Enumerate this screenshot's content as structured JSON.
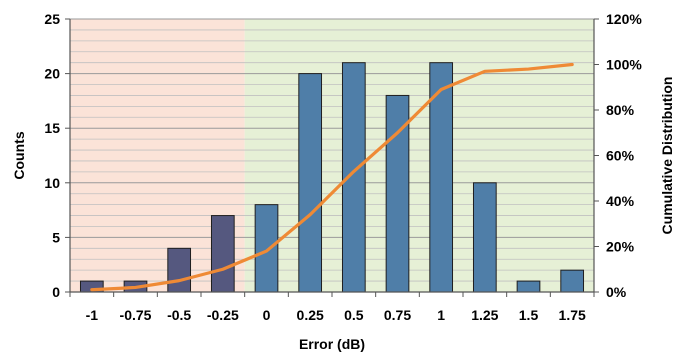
{
  "chart_data": {
    "type": "bar",
    "xlabel": "Error (dB)",
    "ylabel": "Counts",
    "y2label": "Cumulative Distribution",
    "categories": [
      "-1",
      "-0.75",
      "-0.5",
      "-0.25",
      "0",
      "0.25",
      "0.5",
      "0.75",
      "1",
      "1.25",
      "1.5",
      "1.75"
    ],
    "series": [
      {
        "kind": "bar",
        "axis": "left",
        "values": [
          1,
          1,
          4,
          7,
          8,
          20,
          21,
          18,
          21,
          10,
          1,
          2
        ],
        "color": "#4f7ea8",
        "colors": [
          "#55587f",
          "#55587f",
          "#55587f",
          "#55587f",
          "#4f7ea8",
          "#4f7ea8",
          "#4f7ea8",
          "#4f7ea8",
          "#4f7ea8",
          "#4f7ea8",
          "#4f7ea8",
          "#4f7ea8"
        ]
      },
      {
        "kind": "line",
        "axis": "right",
        "values": [
          0.01,
          0.02,
          0.05,
          0.1,
          0.18,
          0.34,
          0.53,
          0.7,
          0.89,
          0.97,
          0.98,
          1.0
        ],
        "color": "#ef8a35"
      }
    ],
    "ylim": [
      0,
      25
    ],
    "yticks": [
      "0",
      "5",
      "10",
      "15",
      "20",
      "25"
    ],
    "y2lim": [
      0,
      1.2
    ],
    "y2ticks": [
      "0%",
      "20%",
      "40%",
      "60%",
      "80%",
      "100%",
      "120%"
    ],
    "grid": true,
    "minor_grid_step": 1,
    "regions": [
      {
        "from_index": 0,
        "to_index": 3,
        "color": "#fbe3d8"
      },
      {
        "from_index": 4,
        "to_index": 11,
        "color": "#e6f0d6"
      }
    ],
    "region_boundary_value": "-0.125"
  }
}
